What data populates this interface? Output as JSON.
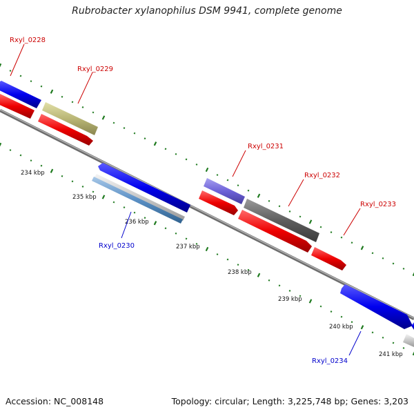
{
  "title": "Rubrobacter xylanophilus DSM 9941, complete genome",
  "footer": {
    "accession": "Accession: NC_008148",
    "summary": "Topology: circular; Length: 3,225,748 bp; Genes: 3,203"
  },
  "colors": {
    "background": "#ffffff",
    "label_red": "#cc0000",
    "label_blue": "#0000cc",
    "tick_green": "#1f7a1f",
    "backbone": "#8a8a8a"
  },
  "ticks": [
    {
      "label": "234 kbp"
    },
    {
      "label": "235 kbp"
    },
    {
      "label": "236 kbp"
    },
    {
      "label": "237 kbp"
    },
    {
      "label": "238 kbp"
    },
    {
      "label": "239 kbp"
    },
    {
      "label": "240 kbp"
    },
    {
      "label": "241 kbp"
    }
  ],
  "genes": [
    {
      "label": "Rxyl_0228",
      "label_color": "#cc0000"
    },
    {
      "label": "Rxyl_0229",
      "label_color": "#cc0000"
    },
    {
      "label": "Rxyl_0230",
      "label_color": "#0000cc"
    },
    {
      "label": "Rxyl_0231",
      "label_color": "#cc0000"
    },
    {
      "label": "Rxyl_0232",
      "label_color": "#cc0000"
    },
    {
      "label": "Rxyl_0233",
      "label_color": "#cc0000"
    },
    {
      "label": "Rxyl_0234",
      "label_color": "#0000cc"
    }
  ]
}
